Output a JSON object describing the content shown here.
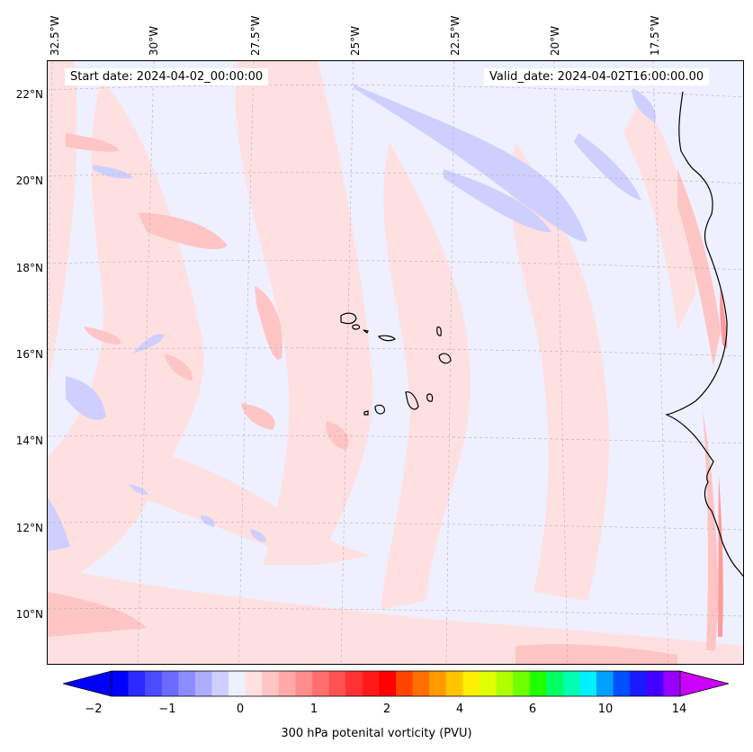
{
  "map": {
    "start_date_text": "Start date: 2024-04-02_00:00:00",
    "valid_date_text": "Valid_date: 2024-04-02T16:00:00.00",
    "longitude_labels": [
      "32.5°W",
      "30°W",
      "27.5°W",
      "25°W",
      "22.5°W",
      "20°W",
      "17.5°W"
    ],
    "latitude_labels": [
      "22°N",
      "20°N",
      "18°N",
      "16°N",
      "14°N",
      "12°N",
      "10°N"
    ]
  },
  "colorbar": {
    "label": "300 hPa potenital vorticity (PVU)",
    "tick_labels": [
      "−2",
      "−1",
      "0",
      "1",
      "2",
      "4",
      "6",
      "10",
      "14"
    ],
    "colors": [
      "#0000ff",
      "#2a2aff",
      "#4b4bff",
      "#6b6bff",
      "#8c8cff",
      "#adadff",
      "#cfcfff",
      "#eef0ff",
      "#ffe0e0",
      "#ffc4c4",
      "#ffa8a8",
      "#ff8c8c",
      "#ff6f6f",
      "#ff5252",
      "#ff3333",
      "#ff1a1a",
      "#ff0000",
      "#ff4400",
      "#ff7000",
      "#ff9a00",
      "#ffc400",
      "#ffee00",
      "#e0ff00",
      "#b0ff00",
      "#70ff00",
      "#20ff00",
      "#00ff60",
      "#00ffb0",
      "#00f0ff",
      "#00a0ff",
      "#0050ff",
      "#1a1aff",
      "#4400ff",
      "#9900ff"
    ],
    "under_color": "#0000ff",
    "over_color": "#cc00ff"
  }
}
